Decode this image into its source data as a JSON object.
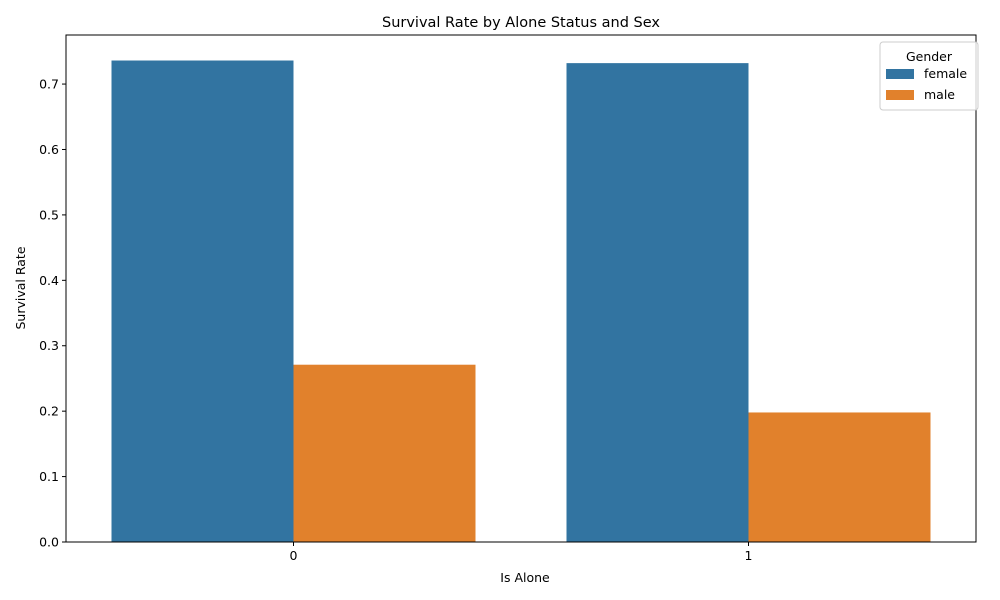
{
  "chart_data": {
    "type": "bar",
    "title": "Survival Rate by Alone Status and Sex",
    "xlabel": "Is Alone",
    "ylabel": "Survival Rate",
    "categories": [
      "0",
      "1"
    ],
    "series": [
      {
        "name": "female",
        "color": "#3274a1",
        "values": [
          0.736,
          0.732
        ]
      },
      {
        "name": "male",
        "color": "#e1812c",
        "values": [
          0.271,
          0.198
        ]
      }
    ],
    "ylim": [
      0,
      0.775
    ],
    "yticks": [
      0.0,
      0.1,
      0.2,
      0.3,
      0.4,
      0.5,
      0.6,
      0.7
    ],
    "ytick_labels": [
      "0.0",
      "0.1",
      "0.2",
      "0.3",
      "0.4",
      "0.5",
      "0.6",
      "0.7"
    ],
    "grid": false,
    "legend": {
      "title": "Gender",
      "placement": "top-right"
    }
  }
}
